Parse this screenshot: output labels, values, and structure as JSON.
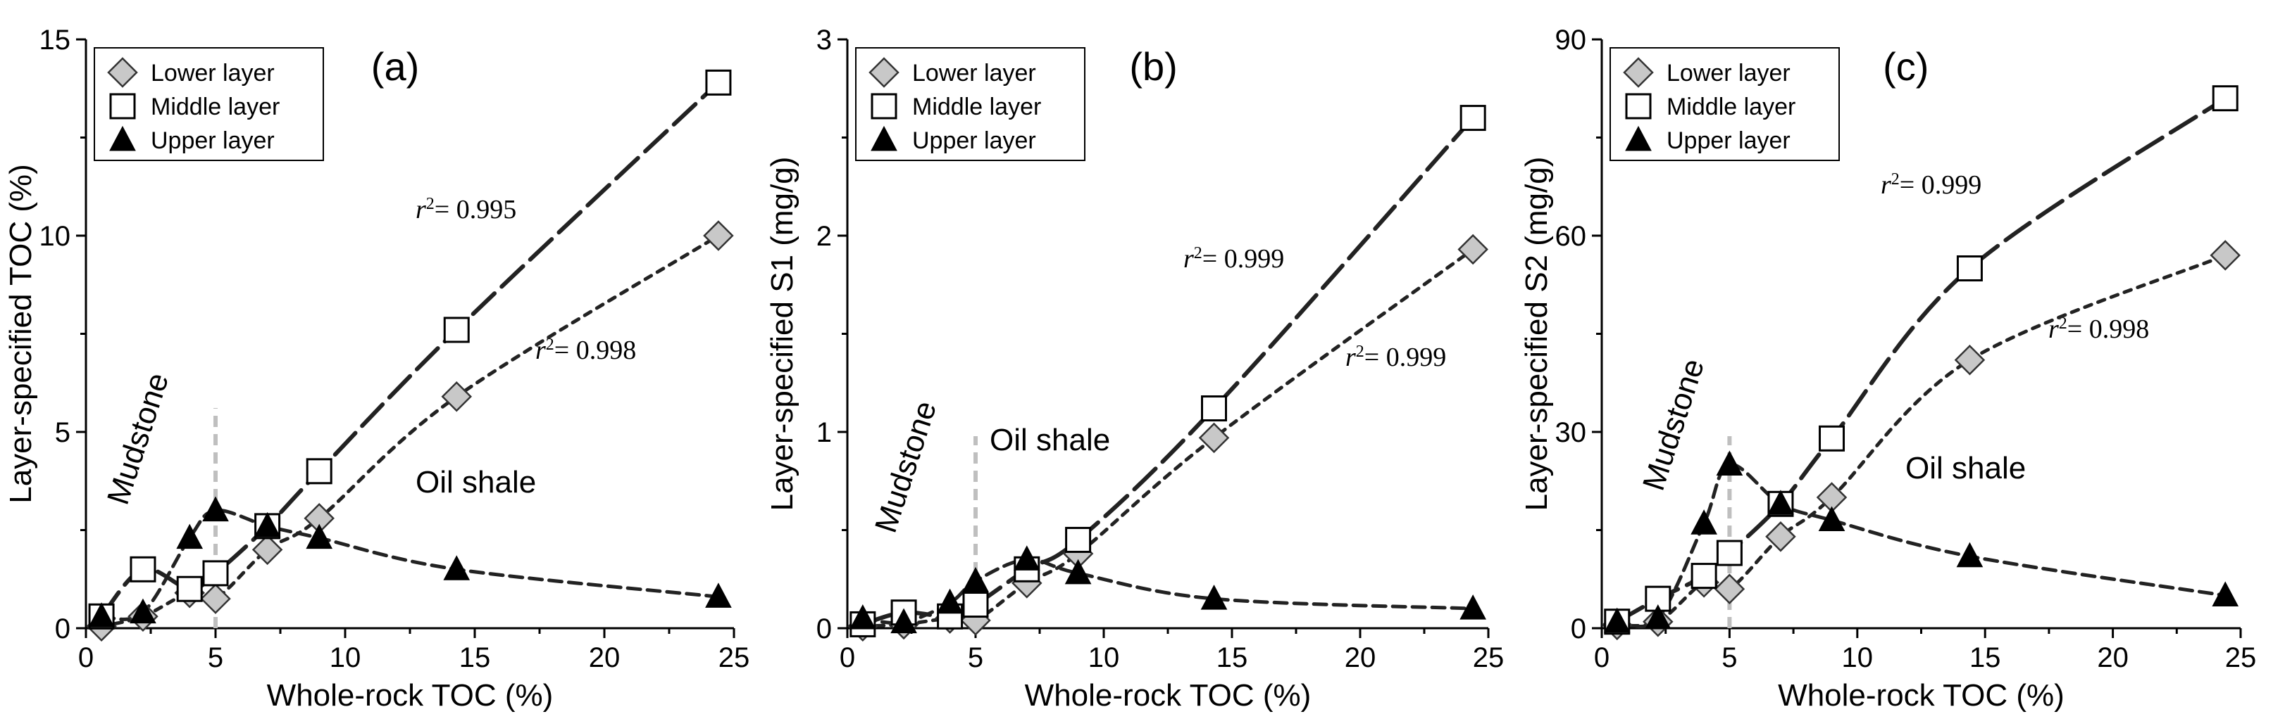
{
  "figure": {
    "marker_colors": {
      "lower": "#c8c8c8",
      "middle": "#ffffff",
      "upper": "#000000"
    }
  },
  "chart_data": [
    {
      "type": "scatter",
      "panel": "(a)",
      "xlabel": "Whole-rock TOC (%)",
      "ylabel": "Layer-specified TOC (%)",
      "xlim": [
        0,
        25
      ],
      "ylim": [
        0,
        15
      ],
      "xticks": [
        0,
        5,
        10,
        15,
        20,
        25
      ],
      "yticks": [
        0,
        5,
        10,
        15
      ],
      "grid": false,
      "legend": {
        "position": "top-left",
        "entries": [
          "Lower layer",
          "Middle layer",
          "Upper layer"
        ]
      },
      "x": [
        0.6,
        2.2,
        4.0,
        5.0,
        7.0,
        9.0,
        14.3,
        24.4
      ],
      "series": [
        {
          "name": "Lower layer",
          "marker": "diamond",
          "values": [
            0.05,
            0.3,
            0.9,
            0.75,
            2.0,
            2.8,
            5.9,
            10.0
          ]
        },
        {
          "name": "Middle layer",
          "marker": "square",
          "values": [
            0.3,
            1.5,
            1.0,
            1.4,
            2.6,
            4.0,
            7.6,
            13.9
          ]
        },
        {
          "name": "Upper layer",
          "marker": "triangle",
          "values": [
            0.3,
            0.4,
            2.3,
            3.0,
            2.6,
            2.3,
            1.5,
            0.8
          ]
        }
      ],
      "annotations": {
        "r2_middle": "= 0.995",
        "r2_lower": "= 0.998",
        "left_region": "Mudstone",
        "right_region": "Oil shale",
        "divider_x": 5
      }
    },
    {
      "type": "scatter",
      "panel": "(b)",
      "xlabel": "Whole-rock TOC (%)",
      "ylabel": "Layer-specified S1 (mg/g)",
      "xlim": [
        0,
        25
      ],
      "ylim": [
        0,
        3
      ],
      "xticks": [
        0,
        5,
        10,
        15,
        20,
        25
      ],
      "yticks": [
        0,
        1,
        2,
        3
      ],
      "grid": false,
      "legend": {
        "position": "top-left",
        "entries": [
          "Lower layer",
          "Middle layer",
          "Upper layer"
        ]
      },
      "x": [
        0.6,
        2.2,
        4.0,
        5.0,
        7.0,
        9.0,
        14.3,
        24.4
      ],
      "series": [
        {
          "name": "Lower layer",
          "marker": "diamond",
          "values": [
            0.01,
            0.02,
            0.05,
            0.04,
            0.23,
            0.38,
            0.97,
            1.93
          ]
        },
        {
          "name": "Middle layer",
          "marker": "square",
          "values": [
            0.02,
            0.08,
            0.06,
            0.12,
            0.3,
            0.45,
            1.12,
            2.6
          ]
        },
        {
          "name": "Upper layer",
          "marker": "triangle",
          "values": [
            0.05,
            0.03,
            0.13,
            0.24,
            0.35,
            0.28,
            0.15,
            0.1
          ]
        }
      ],
      "annotations": {
        "r2_middle": "= 0.999",
        "r2_lower": "= 0.999",
        "left_region": "Mudstone",
        "right_region": "Oil shale",
        "divider_x": 5
      }
    },
    {
      "type": "scatter",
      "panel": "(c)",
      "xlabel": "Whole-rock TOC (%)",
      "ylabel": "Layer-specified S2 (mg/g)",
      "xlim": [
        0,
        25
      ],
      "ylim": [
        0,
        90
      ],
      "xticks": [
        0,
        5,
        10,
        15,
        20,
        25
      ],
      "yticks": [
        0,
        30,
        60,
        90
      ],
      "grid": false,
      "legend": {
        "position": "top-left",
        "entries": [
          "Lower layer",
          "Middle layer",
          "Upper layer"
        ]
      },
      "x": [
        0.6,
        2.2,
        4.0,
        5.0,
        7.0,
        9.0,
        14.4,
        24.4
      ],
      "series": [
        {
          "name": "Lower layer",
          "marker": "diamond",
          "values": [
            0.5,
            1.0,
            7.0,
            6.0,
            14.0,
            20.0,
            41.0,
            57.0
          ]
        },
        {
          "name": "Middle layer",
          "marker": "square",
          "values": [
            1.0,
            4.5,
            8.0,
            11.5,
            19.0,
            29.0,
            55.0,
            81.0
          ]
        },
        {
          "name": "Upper layer",
          "marker": "triangle",
          "values": [
            1.0,
            1.5,
            16.0,
            25.0,
            19.0,
            16.5,
            11.0,
            5.0
          ]
        }
      ],
      "annotations": {
        "r2_middle": "= 0.999",
        "r2_lower": "= 0.998",
        "left_region": "Mudstone",
        "right_region": "Oil shale",
        "divider_x": 5
      }
    }
  ]
}
